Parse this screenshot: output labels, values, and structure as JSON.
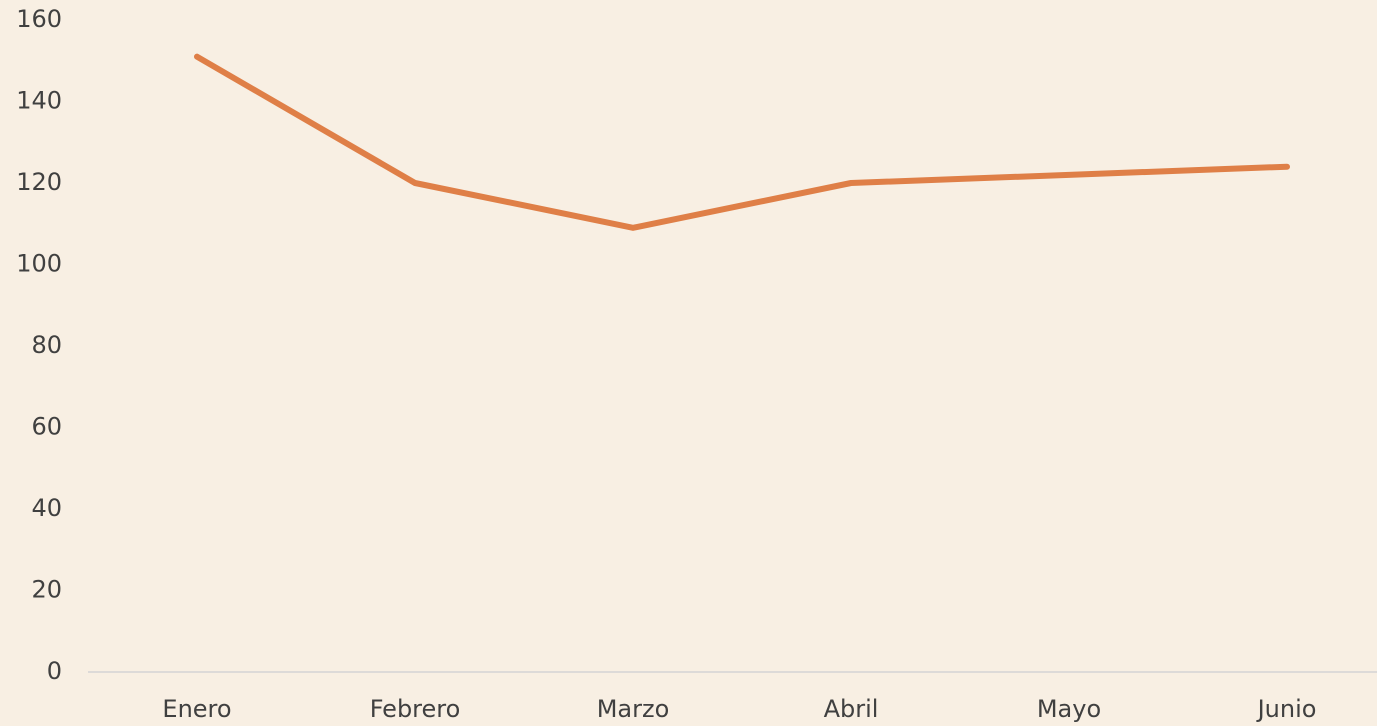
{
  "chart_data": {
    "type": "line",
    "categories": [
      "Enero",
      "Febrero",
      "Marzo",
      "Abril",
      "Mayo",
      "Junio"
    ],
    "values": [
      151,
      120,
      109,
      120,
      122,
      124
    ],
    "color": "#df7f47",
    "ylim": [
      0,
      160
    ],
    "yticks": [
      0,
      20,
      40,
      60,
      80,
      100,
      120,
      140,
      160
    ],
    "grid": false
  }
}
